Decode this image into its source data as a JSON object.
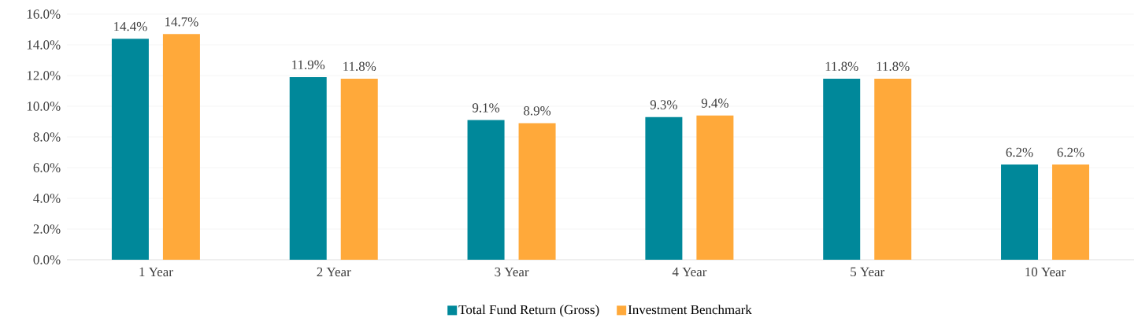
{
  "chart_data": {
    "type": "bar",
    "categories": [
      "1 Year",
      "2 Year",
      "3 Year",
      "4 Year",
      "5 Year",
      "10 Year"
    ],
    "series": [
      {
        "name": "Total Fund Return (Gross)",
        "color": "#00889a",
        "values": [
          14.4,
          11.9,
          9.1,
          9.3,
          11.8,
          6.2
        ],
        "value_labels": [
          "14.4%",
          "11.9%",
          "9.1%",
          "9.3%",
          "11.8%",
          "6.2%"
        ]
      },
      {
        "name": "Investment Benchmark",
        "color": "#ffa93a",
        "values": [
          14.7,
          11.8,
          8.9,
          9.4,
          11.8,
          6.2
        ],
        "value_labels": [
          "14.7%",
          "11.8%",
          "8.9%",
          "9.4%",
          "11.8%",
          "6.2%"
        ]
      }
    ],
    "ylim": [
      0,
      16
    ],
    "yticks": [
      {
        "value": 0,
        "label": "0.0%"
      },
      {
        "value": 2,
        "label": "2.0%"
      },
      {
        "value": 4,
        "label": "4.0%"
      },
      {
        "value": 6,
        "label": "6.0%"
      },
      {
        "value": 8,
        "label": "8.0%"
      },
      {
        "value": 10,
        "label": "10.0%"
      },
      {
        "value": 12,
        "label": "12.0%"
      },
      {
        "value": 14,
        "label": "14.0%"
      },
      {
        "value": 16,
        "label": "16.0%"
      }
    ],
    "grid": "y",
    "legend": "bottom"
  }
}
